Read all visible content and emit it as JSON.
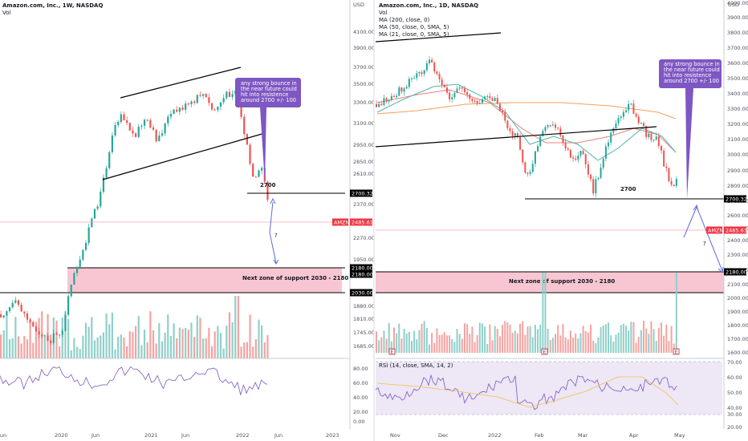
{
  "chart_data": [
    {
      "type": "candlestick",
      "title": "Amazon.com, Inc., 1W, NASDAQ",
      "subtitle": "Vol",
      "x_tick_labels": [
        "Jun",
        "2020",
        "Jun",
        "2021",
        "Jun",
        "2022",
        "Jun",
        "2023"
      ],
      "y_tick_labels": [
        "4100.00",
        "3900.00",
        "3700.00",
        "3500.00",
        "3300.00",
        "3100.00",
        "2950.00",
        "2850.00",
        "2610.00",
        "2370.00",
        "2270.00",
        "1950.00",
        "1880.00",
        "1810.00",
        "1745.00",
        "1685.00"
      ],
      "ylim": [
        1640,
        4180
      ],
      "price_markers": [
        {
          "label": "2700.32",
          "value": 2700.32,
          "color": "#000000"
        },
        {
          "label": "2485.61",
          "value": 2485.61,
          "color": "#f23645",
          "tag": "AMZN"
        },
        {
          "label": "2180.00",
          "value": 2180,
          "color": "#000000"
        },
        {
          "label": "2180.00",
          "value": 2180,
          "color": "#000000"
        },
        {
          "label": "2030.00",
          "value": 2030,
          "color": "#000000"
        }
      ],
      "annotations": [
        {
          "text": "2700",
          "value": 2700
        },
        {
          "text": "any strong bounce in the near future could hit into resistence around 2700 +/- 100"
        },
        {
          "text": "?"
        },
        {
          "text": "Next zone of support 2030 - 2180",
          "range": [
            2030,
            2180
          ]
        }
      ],
      "rsi_tick_labels": [
        "80.00",
        "60.00",
        "40.00",
        "20.00",
        "0.00"
      ]
    },
    {
      "type": "candlestick",
      "title": "Amazon.com, Inc., 1D, NASDAQ",
      "subtitle": "Vol",
      "indicators": [
        "MA (200, close, 0)",
        "MA (50, close, 0, SMA, 5)",
        "MA (21, close, 0, SMA, 5)"
      ],
      "x_tick_labels": [
        "Nov",
        "Dec",
        "2022",
        "Feb",
        "Mar",
        "Apr",
        "May"
      ],
      "y_tick_labels": [
        "4000.00",
        "3900.00",
        "3800.00",
        "3700.00",
        "3600.00",
        "3500.00",
        "3400.00",
        "3300.00",
        "3200.00",
        "3100.00",
        "3000.00",
        "2900.00",
        "2800.00",
        "2700.00",
        "2600.00",
        "2500.00",
        "2400.00",
        "2300.00",
        "2200.00",
        "2100.00",
        "2000.00",
        "1900.00",
        "1800.00",
        "1700.00",
        "1600.00"
      ],
      "ylim": [
        1560,
        4100
      ],
      "price_markers": [
        {
          "label": "2700.32",
          "value": 2700.32,
          "color": "#000000"
        },
        {
          "label": "2485.63",
          "value": 2485.63,
          "color": "#f23645",
          "tag": "AMZN"
        },
        {
          "label": "2180.00",
          "value": 2180,
          "color": "#000000"
        }
      ],
      "annotations": [
        {
          "text": "2700",
          "value": 2700
        },
        {
          "text": "any strong bounce in the near future could hit into resistence around 2700 +/- 100"
        },
        {
          "text": "?"
        },
        {
          "text": "Next zone of support 2030 - 2180",
          "range": [
            2030,
            2180
          ]
        }
      ],
      "rsi_label": "RSI (14, close, SMA, 14, 2)",
      "rsi_tick_labels": [
        "70.00",
        "60.00",
        "50.00",
        "40.00",
        "30.00",
        "20.00"
      ]
    }
  ],
  "ui": {
    "usd_left": "USD",
    "usd_right": "USD",
    "question_mark": "?",
    "events_marker": "E"
  },
  "colors": {
    "up": "#26a69a",
    "down": "#ef5350",
    "vol_up": "#8fd0c9",
    "vol_down": "#f4a3a1",
    "zone": "#f8c6d2",
    "note_bg": "#7e57c2",
    "ma200": "#f5a05a",
    "ma50": "#ef7f7b",
    "ma21": "#4fb5a8",
    "rsi": "#7e57c2",
    "rsi_ma": "#f7c04a"
  }
}
